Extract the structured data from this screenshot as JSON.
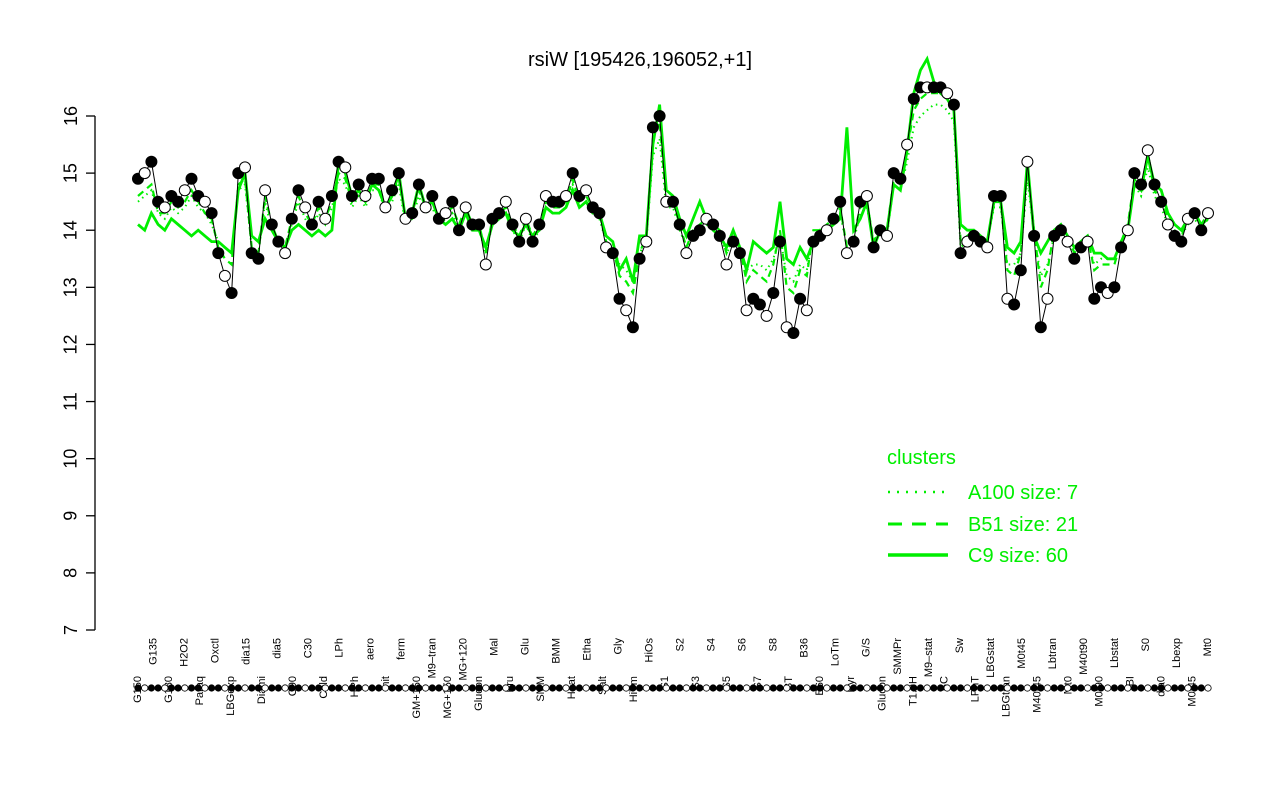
{
  "chart_data": {
    "type": "line",
    "title": "rsiW [195426,196052,+1]",
    "xlabel": "",
    "ylabel": "",
    "ylim": [
      7,
      16.5
    ],
    "yticks": [
      7,
      8,
      9,
      10,
      11,
      12,
      13,
      14,
      15,
      16
    ],
    "x_tick_labels_top": [
      "G150",
      "G135",
      "G180",
      "H2O2",
      "Paraq",
      "Oxctl",
      "LBGexp",
      "dia15",
      "Diami",
      "dia5",
      "C90",
      "C30",
      "Cold",
      "LPh",
      "HPh",
      "aero",
      "nit",
      "ferm",
      "GM+150",
      "M9–tran",
      "MG+150",
      "MG+120",
      "Glucon",
      "Mal",
      "Fru",
      "Glu",
      "SMM",
      "BMM",
      "Heat",
      "Etha",
      "Salt",
      "Gly",
      "HiTm",
      "HiOs",
      "S1",
      "S2",
      "S3",
      "S4",
      "S5",
      "S6",
      "S7",
      "S8",
      "BT",
      "B36",
      "B60",
      "LoTm",
      "Pyr",
      "G/S",
      "Glucon",
      "SMMPr",
      "T1.0H",
      "M9–stat",
      "BC",
      "Sw",
      "LPhT",
      "LBGstat",
      "LBGtran",
      "M0t45",
      "M40t45",
      "Lbtran",
      "Mt0",
      "M40t90",
      "M0t90",
      "Lbstat",
      "BI",
      "S0",
      "dia0",
      "Lbexp",
      "M0t45",
      "Mt0"
    ],
    "series": [
      {
        "name": "",
        "style": "points-black",
        "values": [
          14.9,
          15.0,
          15.2,
          14.5,
          14.4,
          14.6,
          14.5,
          14.7,
          14.9,
          14.6,
          14.5,
          14.3,
          13.6,
          13.2,
          12.9,
          15.0,
          15.1,
          13.6,
          13.5,
          14.7,
          14.1,
          13.8,
          13.6,
          14.2,
          14.7,
          14.4,
          14.1,
          14.5,
          14.2,
          14.6,
          15.2,
          15.1,
          14.6,
          14.8,
          14.6,
          14.9,
          14.9,
          14.4,
          14.7,
          15.0,
          14.2,
          14.3,
          14.8,
          14.4,
          14.6,
          14.2,
          14.3,
          14.5,
          14.0,
          14.4,
          14.1,
          14.1,
          13.4,
          14.2,
          14.3,
          14.5,
          14.1,
          13.8,
          14.2,
          13.8,
          14.1,
          14.6,
          14.5,
          14.5,
          14.6,
          15.0,
          14.6,
          14.7,
          14.4,
          14.3,
          13.7,
          13.6,
          12.8,
          12.6,
          12.3,
          13.5,
          13.8,
          15.8,
          16.0,
          14.5,
          14.5,
          14.1,
          13.6,
          13.9,
          14.0,
          14.2,
          14.1,
          13.9,
          13.4,
          13.8,
          13.6,
          12.6,
          12.8,
          12.7,
          12.5,
          12.9,
          13.8,
          12.3,
          12.2,
          12.8,
          12.6,
          13.8,
          13.9,
          14.0,
          14.2,
          14.5,
          13.6,
          13.8,
          14.5,
          14.6,
          13.7,
          14.0,
          13.9,
          15.0,
          14.9,
          15.5,
          16.3,
          16.5,
          16.5,
          16.5,
          16.5,
          16.4,
          16.2,
          13.6,
          13.8,
          13.9,
          13.8,
          13.7,
          14.6,
          14.6,
          12.8,
          12.7,
          13.3,
          15.2,
          13.9,
          12.3,
          12.8,
          13.9,
          14.0,
          13.8,
          13.5,
          13.7,
          13.8,
          12.8,
          13.0,
          12.9,
          13.0,
          13.7,
          14.0,
          15.0,
          14.8,
          15.4,
          14.8,
          14.5,
          14.1,
          13.9,
          13.8,
          14.2,
          14.3,
          14.0,
          14.3
        ]
      },
      {
        "name": "A100 size: 7",
        "style": "dotted",
        "values": [
          14.5,
          14.6,
          14.7,
          14.3,
          14.2,
          14.4,
          14.3,
          14.4,
          14.6,
          14.4,
          14.3,
          14.1,
          13.8,
          13.7,
          13.6,
          14.7,
          14.8,
          13.7,
          13.6,
          14.5,
          14.0,
          13.8,
          13.7,
          14.1,
          14.5,
          14.2,
          14.0,
          14.3,
          14.1,
          14.4,
          14.9,
          14.8,
          14.4,
          14.6,
          14.4,
          14.7,
          14.7,
          14.3,
          14.5,
          14.8,
          14.1,
          14.2,
          14.6,
          14.3,
          14.4,
          14.1,
          14.2,
          14.3,
          14.0,
          14.3,
          14.0,
          14.0,
          13.6,
          14.1,
          14.2,
          14.3,
          14.0,
          13.8,
          14.1,
          13.8,
          14.0,
          14.4,
          14.3,
          14.3,
          14.4,
          14.8,
          14.4,
          14.5,
          14.3,
          14.2,
          13.8,
          13.7,
          13.4,
          13.3,
          13.1,
          13.6,
          13.8,
          15.3,
          15.6,
          14.4,
          14.4,
          14.0,
          13.7,
          13.9,
          14.0,
          14.1,
          14.0,
          13.9,
          13.6,
          13.8,
          13.7,
          13.3,
          13.4,
          13.4,
          13.3,
          13.5,
          13.9,
          13.2,
          13.1,
          13.4,
          13.3,
          13.9,
          13.9,
          14.0,
          14.1,
          14.3,
          13.7,
          13.8,
          14.3,
          14.4,
          13.8,
          14.0,
          13.9,
          14.8,
          14.7,
          15.2,
          15.8,
          16.0,
          16.1,
          16.2,
          16.2,
          16.1,
          15.9,
          13.7,
          13.8,
          13.9,
          13.8,
          13.8,
          14.4,
          14.4,
          13.4,
          13.4,
          13.6,
          14.9,
          13.9,
          13.2,
          13.4,
          13.9,
          14.0,
          13.8,
          13.6,
          13.7,
          13.8,
          13.4,
          13.5,
          13.5,
          13.5,
          13.8,
          14.0,
          14.8,
          14.6,
          15.1,
          14.6,
          14.4,
          14.1,
          14.0,
          13.9,
          14.1,
          14.2,
          14.0,
          14.2
        ]
      },
      {
        "name": "B51 size: 21",
        "style": "dashed",
        "values": [
          14.6,
          14.7,
          14.8,
          14.3,
          14.3,
          14.5,
          14.4,
          14.5,
          14.7,
          14.5,
          14.3,
          14.2,
          13.7,
          13.5,
          13.4,
          14.8,
          14.9,
          13.7,
          13.6,
          14.6,
          14.1,
          13.8,
          13.7,
          14.2,
          14.6,
          14.3,
          14.1,
          14.4,
          14.2,
          14.5,
          15.0,
          14.9,
          14.5,
          14.7,
          14.5,
          14.8,
          14.8,
          14.4,
          14.6,
          14.9,
          14.2,
          14.3,
          14.7,
          14.4,
          14.5,
          14.2,
          14.3,
          14.4,
          14.1,
          14.4,
          14.1,
          14.1,
          13.6,
          14.2,
          14.3,
          14.4,
          14.1,
          13.9,
          14.2,
          13.9,
          14.1,
          14.5,
          14.4,
          14.4,
          14.5,
          14.9,
          14.5,
          14.6,
          14.4,
          14.3,
          13.8,
          13.7,
          13.2,
          13.1,
          12.9,
          13.6,
          13.9,
          15.6,
          15.9,
          14.5,
          14.5,
          14.1,
          13.7,
          14.0,
          14.1,
          14.2,
          14.1,
          14.0,
          13.6,
          13.9,
          13.7,
          13.1,
          13.3,
          13.2,
          13.1,
          13.4,
          14.0,
          13.0,
          12.9,
          13.3,
          13.2,
          14.0,
          14.0,
          14.1,
          14.2,
          14.4,
          13.7,
          13.9,
          14.4,
          14.5,
          13.8,
          14.1,
          14.0,
          14.9,
          14.8,
          15.4,
          16.1,
          16.3,
          16.4,
          16.4,
          16.4,
          16.3,
          16.1,
          13.8,
          13.9,
          14.0,
          13.9,
          13.8,
          14.5,
          14.5,
          13.3,
          13.2,
          13.6,
          15.1,
          14.0,
          13.0,
          13.3,
          14.0,
          14.1,
          13.9,
          13.6,
          13.8,
          13.9,
          13.3,
          13.4,
          13.4,
          13.4,
          13.8,
          14.1,
          14.9,
          14.7,
          15.3,
          14.7,
          14.5,
          14.2,
          14.0,
          13.9,
          14.2,
          14.3,
          14.1,
          14.3
        ]
      },
      {
        "name": "C9 size: 60",
        "style": "solid",
        "values": [
          14.1,
          14.0,
          14.3,
          14.1,
          14.0,
          14.2,
          14.1,
          14.0,
          13.9,
          14.0,
          13.9,
          13.8,
          13.8,
          13.7,
          13.6,
          14.7,
          15.0,
          13.9,
          13.8,
          14.2,
          14.0,
          13.8,
          13.7,
          14.0,
          14.1,
          14.0,
          13.9,
          14.0,
          13.9,
          14.0,
          15.2,
          15.0,
          14.6,
          14.7,
          14.5,
          14.8,
          14.7,
          14.4,
          14.6,
          15.0,
          14.2,
          14.3,
          14.8,
          14.4,
          14.5,
          14.2,
          14.1,
          14.2,
          14.0,
          14.3,
          14.0,
          14.0,
          13.7,
          14.1,
          14.2,
          14.3,
          14.0,
          13.9,
          14.1,
          13.9,
          14.0,
          14.4,
          14.3,
          14.3,
          14.4,
          14.7,
          14.4,
          14.5,
          14.3,
          14.3,
          13.9,
          13.8,
          13.3,
          13.5,
          13.1,
          13.9,
          13.9,
          15.5,
          16.2,
          14.7,
          14.6,
          14.2,
          13.9,
          14.2,
          14.5,
          14.2,
          14.0,
          13.9,
          13.7,
          14.0,
          13.7,
          13.3,
          13.8,
          13.7,
          13.6,
          13.7,
          14.5,
          13.5,
          13.4,
          13.7,
          13.5,
          13.8,
          14.0,
          14.0,
          14.1,
          14.2,
          15.8,
          14.0,
          14.2,
          14.5,
          13.7,
          14.0,
          14.0,
          14.8,
          14.7,
          15.4,
          16.4,
          16.8,
          17.0,
          16.6,
          16.4,
          16.3,
          16.1,
          14.1,
          14.0,
          14.0,
          13.9,
          13.8,
          14.5,
          14.5,
          13.7,
          13.6,
          13.8,
          15.2,
          13.9,
          13.6,
          13.8,
          14.0,
          14.1,
          13.9,
          13.7,
          13.8,
          13.9,
          13.6,
          13.6,
          13.5,
          13.5,
          13.8,
          14.0,
          14.8,
          14.7,
          15.3,
          14.8,
          14.7,
          14.3,
          14.1,
          14.0,
          14.2,
          14.3,
          14.1,
          14.2
        ]
      }
    ],
    "legend": {
      "title": "clusters",
      "placement": "right",
      "entries": [
        "A100 size: 7",
        "B51 size: 21",
        "C9 size: 60"
      ]
    },
    "colors": {
      "cluster_line": "#00ee00",
      "points": "#000000"
    }
  }
}
